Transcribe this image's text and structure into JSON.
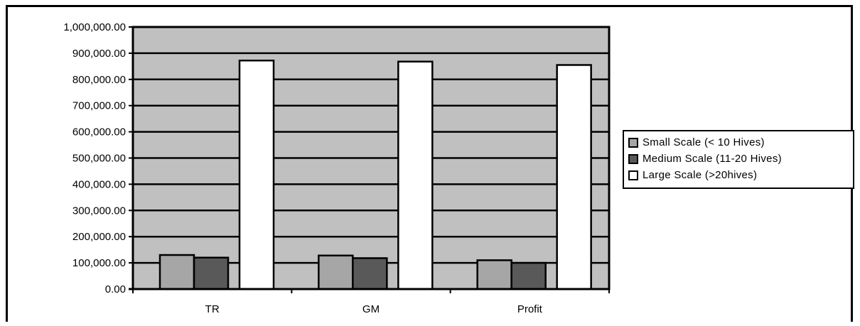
{
  "chart_data": {
    "type": "bar",
    "categories": [
      "TR",
      "GM",
      "Profit"
    ],
    "series": [
      {
        "name": "Small Scale (< 10 Hives)",
        "values": [
          130000,
          128000,
          110000
        ],
        "color": "#a6a6a6"
      },
      {
        "name": "Medium Scale (11-20 Hives)",
        "values": [
          120000,
          118000,
          100000
        ],
        "color": "#595959"
      },
      {
        "name": "Large Scale (>20hives)",
        "values": [
          872000,
          868000,
          855000
        ],
        "color": "#ffffff"
      }
    ],
    "yticks": [
      "0.00",
      "100,000.00",
      "200,000.00",
      "300,000.00",
      "400,000.00",
      "500,000.00",
      "600,000.00",
      "700,000.00",
      "800,000.00",
      "900,000.00",
      "1,000,000.00"
    ],
    "ylim": [
      0,
      1000000
    ],
    "grid": true,
    "plot_background": "#c0c0c0",
    "legend_position": "right",
    "title": "",
    "xlabel": "",
    "ylabel": ""
  }
}
